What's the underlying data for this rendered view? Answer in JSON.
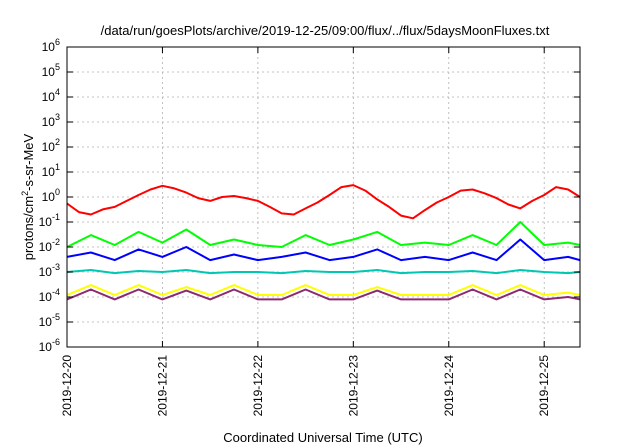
{
  "chart_data": {
    "type": "line",
    "title": "/data/run/goesPlots/archive/2019-12-25/09:00/flux/../flux/5daysMoonFluxes.txt",
    "xlabel": "Coordinated Universal Time (UTC)",
    "ylabel": {
      "pre": "protons/cm",
      "sup": "2",
      "post": "-s-sr-MeV"
    },
    "yscale": "log",
    "ylim": [
      1e-06,
      1000000.0
    ],
    "xlim": [
      "2019-12-20T00:00",
      "2019-12-25T09:00"
    ],
    "grid": true,
    "y_ticks": [
      {
        "base": "10",
        "exp": "-6",
        "value": 1e-06
      },
      {
        "base": "10",
        "exp": "-5",
        "value": 1e-05
      },
      {
        "base": "10",
        "exp": "-4",
        "value": 0.0001
      },
      {
        "base": "10",
        "exp": "-3",
        "value": 0.001
      },
      {
        "base": "10",
        "exp": "-2",
        "value": 0.01
      },
      {
        "base": "10",
        "exp": "-1",
        "value": 0.1
      },
      {
        "base": "10",
        "exp": "0",
        "value": 1
      },
      {
        "base": "10",
        "exp": "1",
        "value": 10
      },
      {
        "base": "10",
        "exp": "2",
        "value": 100
      },
      {
        "base": "10",
        "exp": "3",
        "value": 1000
      },
      {
        "base": "10",
        "exp": "4",
        "value": 10000
      },
      {
        "base": "10",
        "exp": "5",
        "value": 100000
      },
      {
        "base": "10",
        "exp": "6",
        "value": 1000000
      }
    ],
    "x_ticks": [
      "2019-12-20",
      "2019-12-21",
      "2019-12-22",
      "2019-12-23",
      "2019-12-24",
      "2019-12-25"
    ],
    "series": [
      {
        "color": "#ff0000",
        "x": [
          "2019-12-20T00:00",
          "2019-12-20T03:00",
          "2019-12-20T06:00",
          "2019-12-20T09:00",
          "2019-12-20T12:00",
          "2019-12-20T15:00",
          "2019-12-20T18:00",
          "2019-12-20T21:00",
          "2019-12-21T00:00",
          "2019-12-21T03:00",
          "2019-12-21T06:00",
          "2019-12-21T09:00",
          "2019-12-21T12:00",
          "2019-12-21T15:00",
          "2019-12-21T18:00",
          "2019-12-21T21:00",
          "2019-12-22T00:00",
          "2019-12-22T03:00",
          "2019-12-22T06:00",
          "2019-12-22T09:00",
          "2019-12-22T12:00",
          "2019-12-22T15:00",
          "2019-12-22T18:00",
          "2019-12-22T21:00",
          "2019-12-23T00:00",
          "2019-12-23T03:00",
          "2019-12-23T06:00",
          "2019-12-23T09:00",
          "2019-12-23T12:00",
          "2019-12-23T15:00",
          "2019-12-23T18:00",
          "2019-12-23T21:00",
          "2019-12-24T00:00",
          "2019-12-24T03:00",
          "2019-12-24T06:00",
          "2019-12-24T09:00",
          "2019-12-24T12:00",
          "2019-12-24T15:00",
          "2019-12-24T18:00",
          "2019-12-24T21:00",
          "2019-12-25T00:00",
          "2019-12-25T03:00",
          "2019-12-25T06:00",
          "2019-12-25T09:00"
        ],
        "values": [
          0.55,
          0.25,
          0.2,
          0.32,
          0.4,
          0.7,
          1.2,
          2.0,
          2.8,
          2.2,
          1.5,
          0.9,
          0.7,
          1.0,
          1.1,
          0.9,
          0.7,
          0.4,
          0.22,
          0.2,
          0.35,
          0.6,
          1.2,
          2.5,
          3.0,
          1.8,
          0.8,
          0.4,
          0.18,
          0.14,
          0.3,
          0.6,
          1.0,
          1.8,
          2.0,
          1.4,
          0.9,
          0.5,
          0.35,
          0.7,
          1.2,
          2.5,
          2.0,
          1.0
        ]
      },
      {
        "color": "#00ff00",
        "x": [
          "2019-12-20T00:00",
          "2019-12-20T06:00",
          "2019-12-20T12:00",
          "2019-12-20T18:00",
          "2019-12-21T00:00",
          "2019-12-21T06:00",
          "2019-12-21T12:00",
          "2019-12-21T18:00",
          "2019-12-22T00:00",
          "2019-12-22T06:00",
          "2019-12-22T12:00",
          "2019-12-22T18:00",
          "2019-12-23T00:00",
          "2019-12-23T06:00",
          "2019-12-23T12:00",
          "2019-12-23T18:00",
          "2019-12-24T00:00",
          "2019-12-24T06:00",
          "2019-12-24T12:00",
          "2019-12-24T18:00",
          "2019-12-25T00:00",
          "2019-12-25T06:00",
          "2019-12-25T09:00"
        ],
        "values": [
          0.01,
          0.03,
          0.012,
          0.04,
          0.015,
          0.05,
          0.012,
          0.02,
          0.012,
          0.01,
          0.03,
          0.012,
          0.02,
          0.04,
          0.012,
          0.015,
          0.012,
          0.03,
          0.012,
          0.1,
          0.012,
          0.015,
          0.012
        ]
      },
      {
        "color": "#0000ff",
        "x": [
          "2019-12-20T00:00",
          "2019-12-20T06:00",
          "2019-12-20T12:00",
          "2019-12-20T18:00",
          "2019-12-21T00:00",
          "2019-12-21T06:00",
          "2019-12-21T12:00",
          "2019-12-21T18:00",
          "2019-12-22T00:00",
          "2019-12-22T06:00",
          "2019-12-22T12:00",
          "2019-12-22T18:00",
          "2019-12-23T00:00",
          "2019-12-23T06:00",
          "2019-12-23T12:00",
          "2019-12-23T18:00",
          "2019-12-24T00:00",
          "2019-12-24T06:00",
          "2019-12-24T12:00",
          "2019-12-24T18:00",
          "2019-12-25T00:00",
          "2019-12-25T06:00",
          "2019-12-25T09:00"
        ],
        "values": [
          0.004,
          0.006,
          0.003,
          0.008,
          0.004,
          0.01,
          0.003,
          0.005,
          0.003,
          0.004,
          0.006,
          0.003,
          0.004,
          0.008,
          0.003,
          0.004,
          0.003,
          0.006,
          0.003,
          0.02,
          0.003,
          0.004,
          0.003
        ]
      },
      {
        "color": "#00c8b0",
        "x": [
          "2019-12-20T00:00",
          "2019-12-20T06:00",
          "2019-12-20T12:00",
          "2019-12-20T18:00",
          "2019-12-21T00:00",
          "2019-12-21T06:00",
          "2019-12-21T12:00",
          "2019-12-21T18:00",
          "2019-12-22T00:00",
          "2019-12-22T06:00",
          "2019-12-22T12:00",
          "2019-12-22T18:00",
          "2019-12-23T00:00",
          "2019-12-23T06:00",
          "2019-12-23T12:00",
          "2019-12-23T18:00",
          "2019-12-24T00:00",
          "2019-12-24T06:00",
          "2019-12-24T12:00",
          "2019-12-24T18:00",
          "2019-12-25T00:00",
          "2019-12-25T06:00",
          "2019-12-25T09:00"
        ],
        "values": [
          0.001,
          0.0012,
          0.0009,
          0.0011,
          0.001,
          0.0012,
          0.0009,
          0.001,
          0.001,
          0.0009,
          0.0011,
          0.001,
          0.001,
          0.0012,
          0.0009,
          0.001,
          0.001,
          0.0011,
          0.0009,
          0.0012,
          0.001,
          0.0009,
          0.001
        ]
      },
      {
        "color": "#ffff00",
        "x": [
          "2019-12-20T00:00",
          "2019-12-20T06:00",
          "2019-12-20T12:00",
          "2019-12-20T18:00",
          "2019-12-21T00:00",
          "2019-12-21T06:00",
          "2019-12-21T12:00",
          "2019-12-21T18:00",
          "2019-12-22T00:00",
          "2019-12-22T06:00",
          "2019-12-22T12:00",
          "2019-12-22T18:00",
          "2019-12-23T00:00",
          "2019-12-23T06:00",
          "2019-12-23T12:00",
          "2019-12-23T18:00",
          "2019-12-24T00:00",
          "2019-12-24T06:00",
          "2019-12-24T12:00",
          "2019-12-24T18:00",
          "2019-12-25T00:00",
          "2019-12-25T06:00",
          "2019-12-25T09:00"
        ],
        "values": [
          0.00012,
          0.0003,
          0.00012,
          0.0003,
          0.00012,
          0.00025,
          0.00012,
          0.0003,
          0.00012,
          0.00012,
          0.0003,
          0.00012,
          0.00012,
          0.00025,
          0.00012,
          0.00012,
          0.00012,
          0.0003,
          0.00012,
          0.0003,
          0.00012,
          0.00015,
          0.00012
        ]
      },
      {
        "color": "#8b2a6e",
        "x": [
          "2019-12-20T00:00",
          "2019-12-20T06:00",
          "2019-12-20T12:00",
          "2019-12-20T18:00",
          "2019-12-21T00:00",
          "2019-12-21T06:00",
          "2019-12-21T12:00",
          "2019-12-21T18:00",
          "2019-12-22T00:00",
          "2019-12-22T06:00",
          "2019-12-22T12:00",
          "2019-12-22T18:00",
          "2019-12-23T00:00",
          "2019-12-23T06:00",
          "2019-12-23T12:00",
          "2019-12-23T18:00",
          "2019-12-24T00:00",
          "2019-12-24T06:00",
          "2019-12-24T12:00",
          "2019-12-24T18:00",
          "2019-12-25T00:00",
          "2019-12-25T06:00",
          "2019-12-25T09:00"
        ],
        "values": [
          8e-05,
          0.0002,
          8e-05,
          0.0002,
          8e-05,
          0.00018,
          8e-05,
          0.0002,
          8e-05,
          8e-05,
          0.0002,
          8e-05,
          8e-05,
          0.00018,
          8e-05,
          8e-05,
          8e-05,
          0.0002,
          8e-05,
          0.0002,
          8e-05,
          0.0001,
          8e-05
        ]
      }
    ]
  }
}
